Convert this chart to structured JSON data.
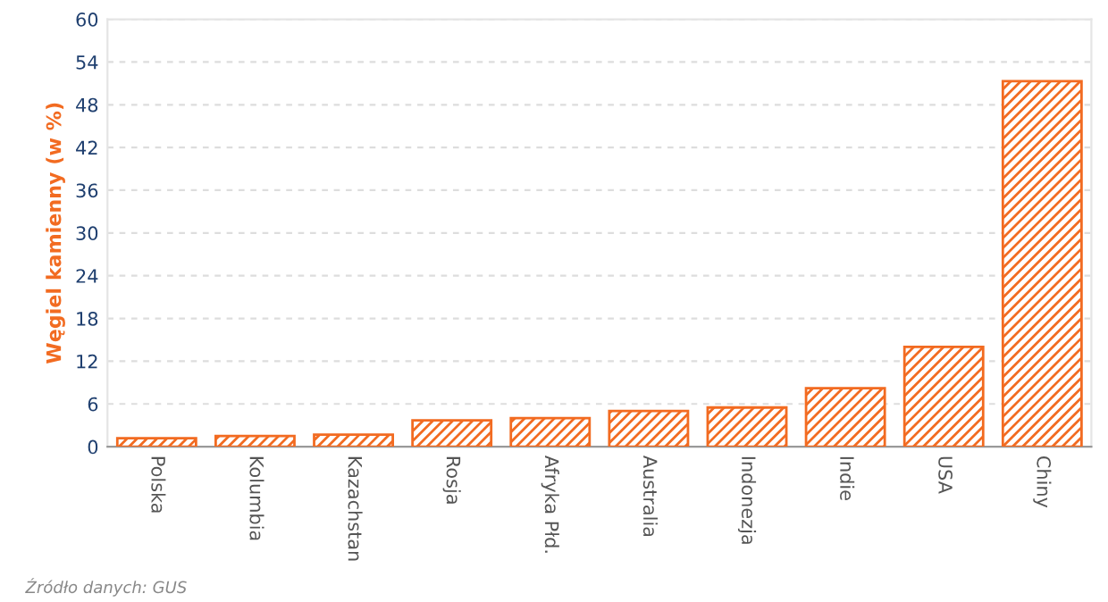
{
  "chart_data": {
    "type": "bar",
    "ylabel": "Węgiel kamienny (w %)",
    "categories": [
      "Polska",
      "Kolumbia",
      "Kazachstan",
      "Rosja",
      "Afryka Płd.",
      "Australia",
      "Indonezja",
      "Indie",
      "USA",
      "Chiny"
    ],
    "values": [
      1.2,
      1.5,
      1.7,
      3.7,
      4.0,
      5.0,
      5.5,
      8.2,
      14.0,
      51.3
    ],
    "color": "#f26b21",
    "ylim": [
      0,
      60
    ],
    "yticks": [
      0,
      6,
      12,
      18,
      24,
      30,
      36,
      42,
      48,
      54,
      60
    ],
    "grid": "y",
    "annotations": [
      "Źródło danych: GUS"
    ]
  }
}
